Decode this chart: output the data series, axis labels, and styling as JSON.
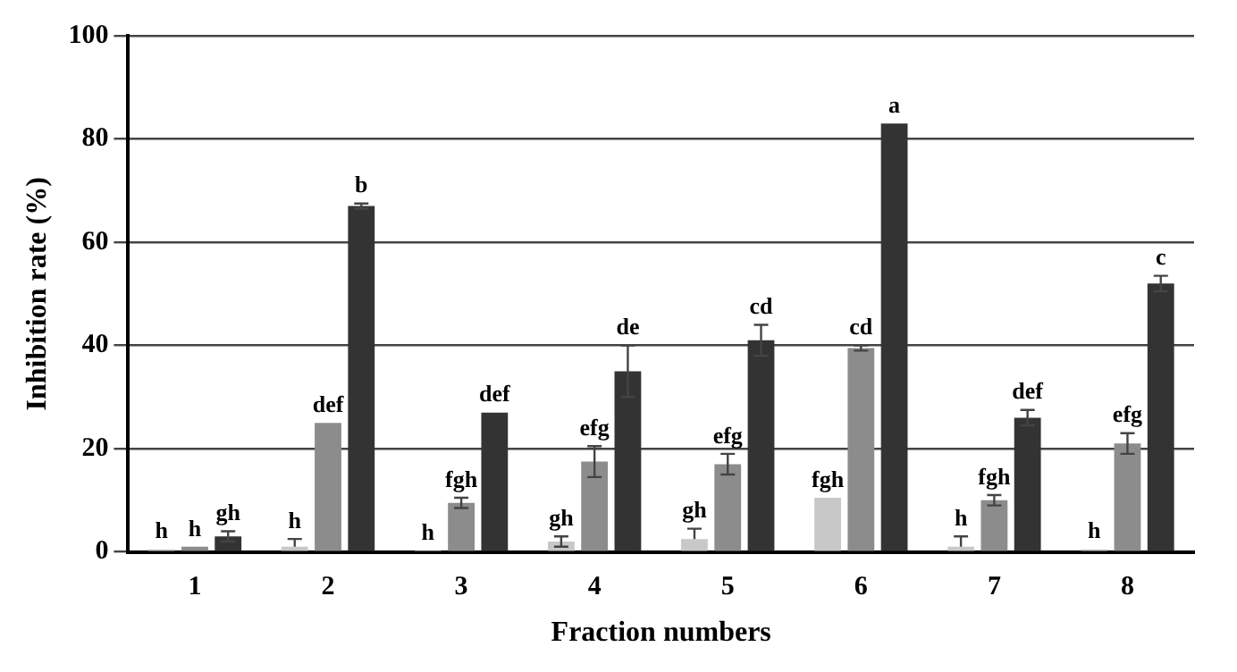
{
  "chart_data": {
    "type": "bar",
    "xlabel": "Fraction numbers",
    "ylabel": "Inhibition rate (%)",
    "categories": [
      "1",
      "2",
      "3",
      "4",
      "5",
      "6",
      "7",
      "8"
    ],
    "series": [
      {
        "color": "#c8c8c8",
        "values": [
          0.5,
          1,
          0.3,
          2,
          2.5,
          10.5,
          1,
          0.5
        ],
        "errors": [
          null,
          [
            1,
            2.5
          ],
          null,
          1,
          [
            2.5,
            4.5
          ],
          null,
          [
            1,
            3
          ],
          null
        ],
        "value_labels": [
          "h",
          "h",
          "h",
          "gh",
          "gh",
          "fgh",
          "h",
          "h"
        ]
      },
      {
        "color": "#8c8c8c",
        "values": [
          1,
          25,
          9.5,
          17.5,
          17,
          39.5,
          10,
          21
        ],
        "errors": [
          null,
          null,
          1,
          3,
          2,
          0.5,
          1,
          2
        ],
        "value_labels": [
          "h",
          "def",
          "fgh",
          "efg",
          "efg",
          "cd",
          "fgh",
          "efg"
        ]
      },
      {
        "color": "#333333",
        "values": [
          3,
          67,
          27,
          35,
          41,
          83,
          26,
          52
        ],
        "errors": [
          1,
          0.5,
          null,
          5,
          3,
          null,
          1.5,
          1.5
        ],
        "value_labels": [
          "gh",
          "b",
          "def",
          "de",
          "cd",
          "a",
          "def",
          "c"
        ]
      }
    ],
    "ylim": [
      0,
      100
    ],
    "yticks": [
      0,
      20,
      40,
      60,
      80,
      100
    ],
    "grid": "y",
    "legend": false
  }
}
